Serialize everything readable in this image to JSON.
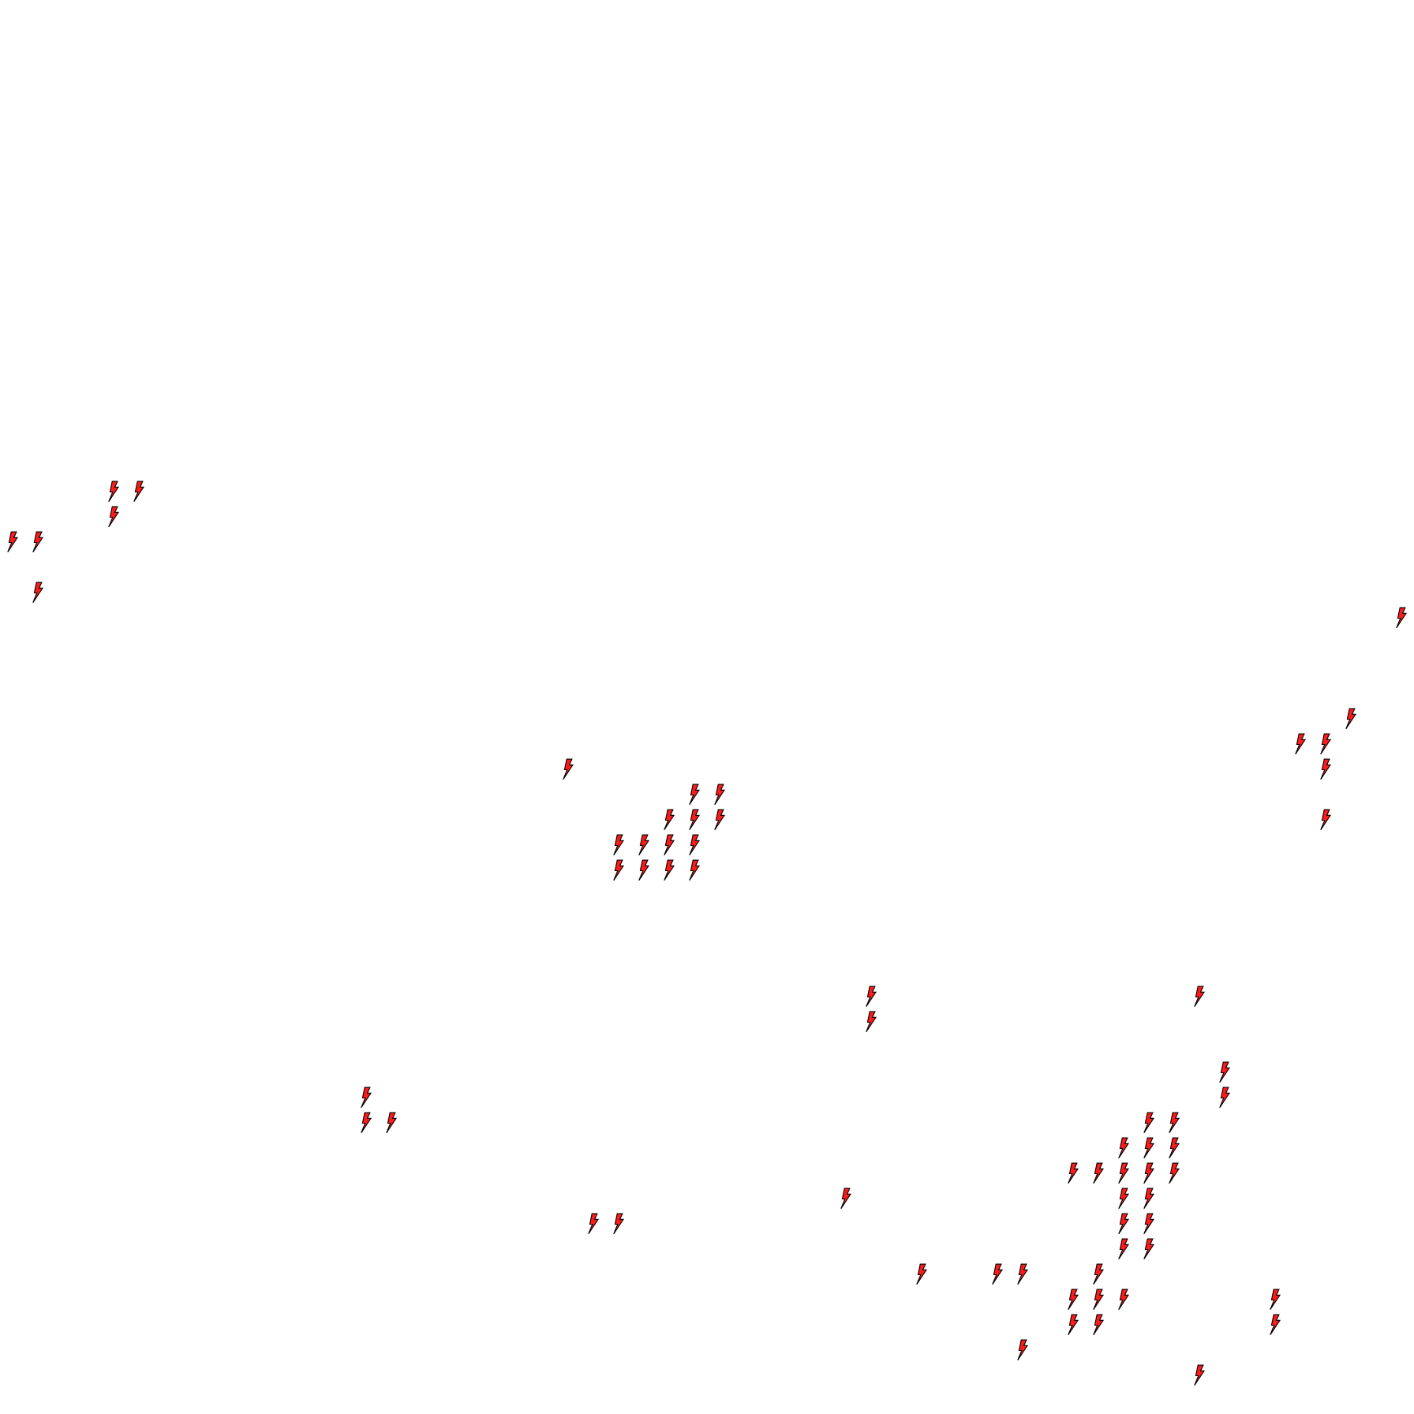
{
  "map": {
    "background": "#ffffff",
    "marker_icon": "lightning-bolt-icon",
    "marker_fill": "#ff1a1a",
    "marker_stroke": "#000000"
  }
}
